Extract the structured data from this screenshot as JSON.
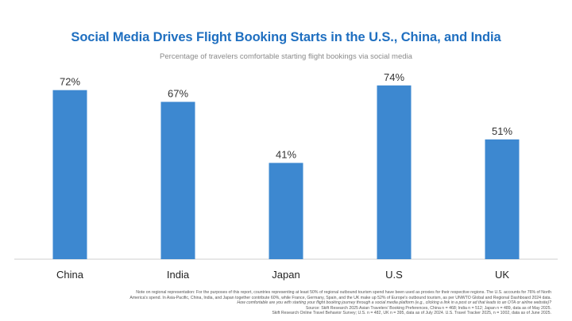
{
  "title": "Social Media Drives Flight Booking Starts in the U.S., China, and India",
  "subtitle": "Percentage of travelers comfortable starting flight bookings via social media",
  "chart_data": {
    "type": "bar",
    "title": "Social Media Drives Flight Booking Starts in the U.S., China, and India",
    "subtitle": "Percentage of travelers comfortable starting flight bookings via social media",
    "categories": [
      "China",
      "India",
      "Japan",
      "U.S",
      "UK"
    ],
    "values": [
      72,
      67,
      41,
      74,
      51
    ],
    "value_labels": [
      "72%",
      "67%",
      "41%",
      "74%",
      "51%"
    ],
    "xlabel": "",
    "ylabel": "",
    "ylim": [
      0,
      80
    ],
    "grid": false,
    "bar_color": "#3d88d0"
  },
  "notes": {
    "line1": "Note on regional representation: For the purposes of this report, countries representing at least 50% of regional outbound tourism spend have been used as proxies for their respective regions. The U.S. accounts for 76% of North",
    "line2": "America's spend. In Asia-Pacific, China, India, and Japan together contribute 60%, while France, Germany, Spain, and the UK make up 52% of Europe's outbound tourism, as per UNWTO Global and Regional Dashboard 2024 data.",
    "question": "How comfortable are you with starting your flight booking journey through a social media platform (e.g., clicking a link in a post or ad that leads to an OTA or airline website)?",
    "source1": "Source: Skift Research 2025 Asian Travelers' Booking Preferences, China n = 468; India n = 512; Japan n = 489, data as of May 2025.",
    "source2": "Skift Research Online Travel Behavior Survey; U.S. n = 482, UK n = 395, data as of July 2024. U.S. Travel Tracker 2025, n = 1002, data as of June 2025."
  }
}
